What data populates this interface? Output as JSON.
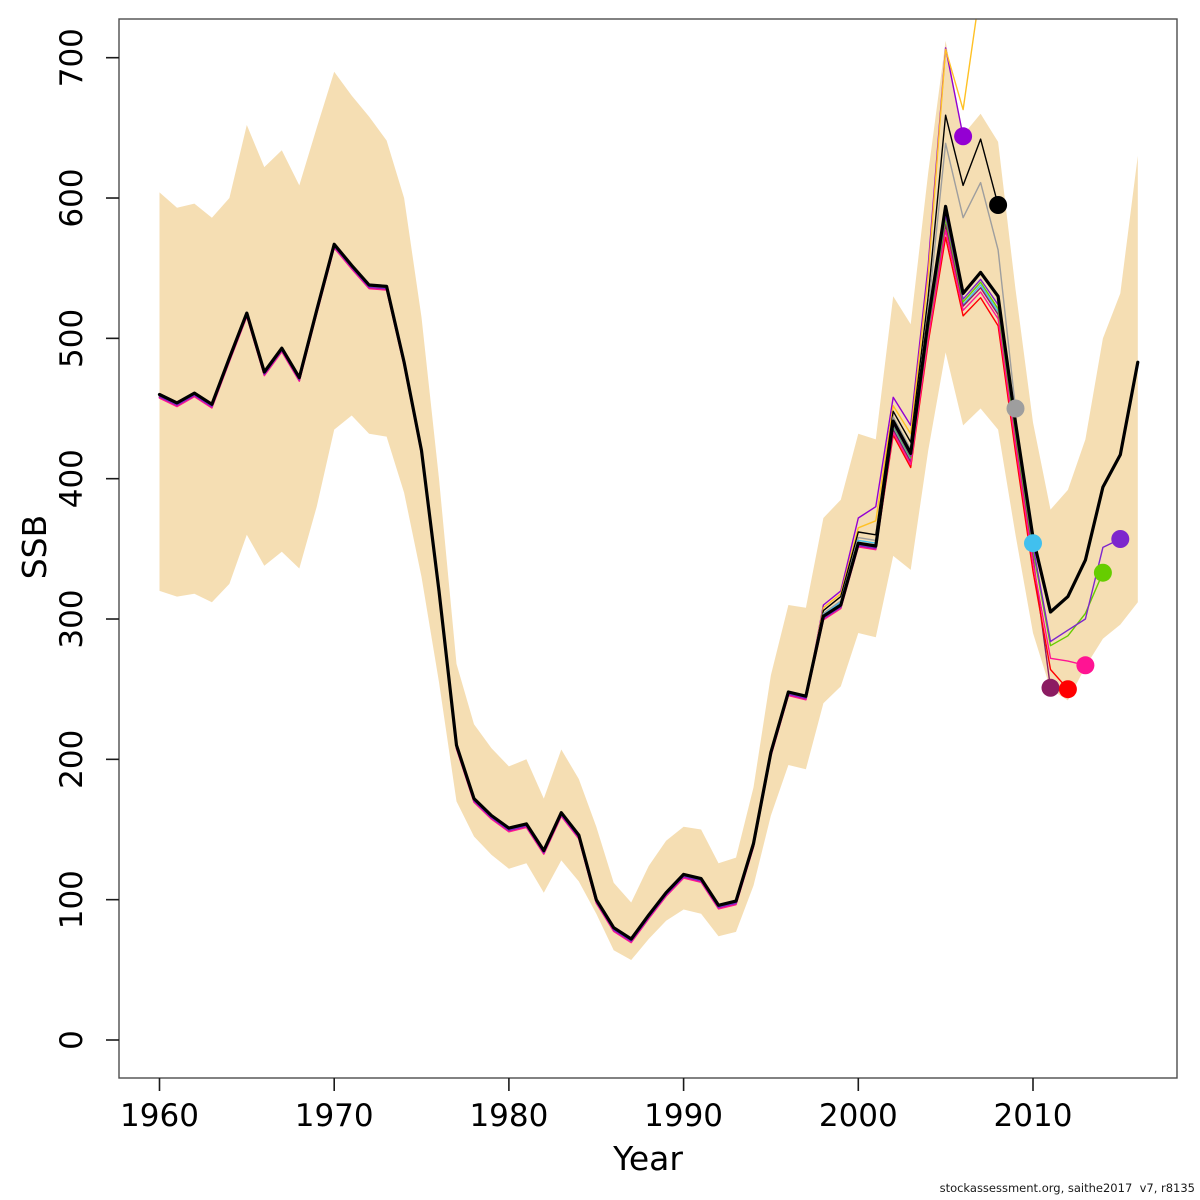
{
  "watermark": "stockassessment.org, saithe2017  v7, r8135",
  "chart_data": {
    "type": "line",
    "title": "",
    "xlabel": "Year",
    "ylabel": "SSB",
    "grid": false,
    "legend": "none",
    "xlim": [
      1957.7,
      2018.3
    ],
    "ylim": [
      -27,
      727
    ],
    "x_ticks": [
      1960,
      1970,
      1980,
      1990,
      2000,
      2010
    ],
    "y_ticks": [
      0,
      100,
      200,
      300,
      400,
      500,
      600,
      700
    ],
    "years": [
      1960,
      1961,
      1962,
      1963,
      1964,
      1965,
      1966,
      1967,
      1968,
      1969,
      1970,
      1971,
      1972,
      1973,
      1974,
      1975,
      1976,
      1977,
      1978,
      1979,
      1980,
      1981,
      1982,
      1983,
      1984,
      1985,
      1986,
      1987,
      1988,
      1989,
      1990,
      1991,
      1992,
      1993,
      1994,
      1995,
      1996,
      1997,
      1998,
      1999,
      2000,
      2001,
      2002,
      2003,
      2004,
      2005,
      2006,
      2007,
      2008,
      2009,
      2010,
      2011,
      2012,
      2013,
      2014,
      2015,
      2016
    ],
    "band": {
      "label": "pointwise confidence region",
      "color": "#F5DEB3",
      "upper": [
        604,
        593,
        596,
        586,
        600,
        652,
        622,
        634,
        609,
        650,
        690,
        673,
        658,
        641,
        600,
        515,
        400,
        268,
        225,
        208,
        195,
        200,
        172,
        207,
        186,
        152,
        112,
        98,
        124,
        142,
        152,
        150,
        126,
        130,
        180,
        260,
        310,
        308,
        372,
        385,
        432,
        428,
        530,
        510,
        618,
        712,
        645,
        660,
        640,
        535,
        440,
        378,
        392,
        428,
        500,
        532,
        630
      ],
      "lower": [
        320,
        316,
        318,
        312,
        325,
        360,
        338,
        348,
        336,
        380,
        435,
        445,
        432,
        430,
        390,
        330,
        255,
        170,
        145,
        132,
        122,
        126,
        105,
        128,
        113,
        90,
        64,
        57,
        72,
        85,
        93,
        90,
        74,
        77,
        110,
        160,
        196,
        193,
        240,
        252,
        290,
        287,
        345,
        335,
        420,
        490,
        438,
        450,
        435,
        360,
        290,
        250,
        242,
        266,
        286,
        296,
        312
      ]
    },
    "main_series": {
      "name": "current assessment (terminal year 2016)",
      "color": "#000000",
      "values": [
        460,
        454,
        461,
        453,
        486,
        518,
        476,
        493,
        472,
        520,
        567,
        552,
        538,
        537,
        483,
        420,
        320,
        210,
        172,
        160,
        151,
        154,
        135,
        162,
        146,
        100,
        80,
        72,
        89,
        105,
        118,
        115,
        96,
        99,
        140,
        205,
        248,
        245,
        302,
        310,
        354,
        352,
        441,
        418,
        513,
        594,
        532,
        547,
        530,
        440,
        358,
        305,
        316,
        342,
        394,
        417,
        483
      ]
    },
    "retro_series": [
      {
        "name": "retro peel 2006",
        "terminal_year": 2006,
        "color": "#9400D3",
        "tail_start": 1998,
        "tail": [
          310,
          320,
          372,
          380,
          458,
          438,
          552,
          707,
          644
        ],
        "dot": {
          "year": 2006,
          "value": 644
        }
      },
      {
        "name": "retro peel 2007",
        "terminal_year": 2007,
        "color": "#FFC125",
        "tail_start": 1998,
        "tail": [
          308,
          318,
          365,
          370,
          452,
          432,
          545,
          706,
          663,
          750
        ],
        "dot": {
          "year": 2007,
          "value": 750
        }
      },
      {
        "name": "retro peel 2008",
        "terminal_year": 2008,
        "color": "#000000",
        "tail_start": 1998,
        "tail": [
          306,
          316,
          362,
          360,
          448,
          426,
          530,
          659,
          609,
          642,
          595
        ],
        "dot": {
          "year": 2008,
          "value": 595
        }
      },
      {
        "name": "retro peel 2009",
        "terminal_year": 2009,
        "color": "#9E9E9E",
        "tail_start": 1998,
        "tail": [
          304,
          313,
          358,
          356,
          444,
          421,
          520,
          639,
          586,
          611,
          563,
          450
        ],
        "dot": {
          "year": 2009,
          "value": 450
        }
      },
      {
        "name": "retro peel 2010",
        "terminal_year": 2010,
        "color": "#41C0EE",
        "tail_start": 1998,
        "tail": [
          303,
          312,
          356,
          354,
          437,
          414,
          505,
          583,
          524,
          538,
          519,
          430,
          354
        ],
        "dot": {
          "year": 2010,
          "value": 354
        }
      },
      {
        "name": "retro peel 2011",
        "terminal_year": 2011,
        "color": "#8B1C62",
        "tail_start": 2002,
        "tail": [
          435,
          412,
          503,
          581,
          523,
          536,
          517,
          428,
          344,
          251
        ],
        "dot": {
          "year": 2011,
          "value": 251
        }
      },
      {
        "name": "retro peel 2012",
        "terminal_year": 2012,
        "color": "#FF0000",
        "tail_start": 2002,
        "tail": [
          431,
          408,
          497,
          572,
          516,
          529,
          509,
          419,
          334,
          264,
          250
        ],
        "dot": {
          "year": 2012,
          "value": 250
        }
      },
      {
        "name": "retro peel 2013",
        "terminal_year": 2013,
        "color": "#FF1493",
        "tail_start": 2002,
        "tail": [
          433,
          410,
          500,
          577,
          520,
          533,
          514,
          424,
          340,
          272,
          270,
          267
        ],
        "dot": {
          "year": 2013,
          "value": 267
        }
      },
      {
        "name": "retro peel 2014",
        "terminal_year": 2014,
        "color": "#66CD00",
        "tail_start": 2002,
        "tail": [
          438,
          415,
          506,
          585,
          526,
          540,
          521,
          432,
          349,
          281,
          288,
          304,
          333
        ],
        "dot": {
          "year": 2014,
          "value": 333
        }
      },
      {
        "name": "retro peel 2015",
        "terminal_year": 2015,
        "color": "#7D26CD",
        "tail_start": 2002,
        "tail": [
          439,
          416,
          508,
          588,
          528,
          542,
          524,
          435,
          352,
          284,
          292,
          300,
          351,
          357
        ],
        "dot": {
          "year": 2015,
          "value": 357
        }
      }
    ]
  }
}
